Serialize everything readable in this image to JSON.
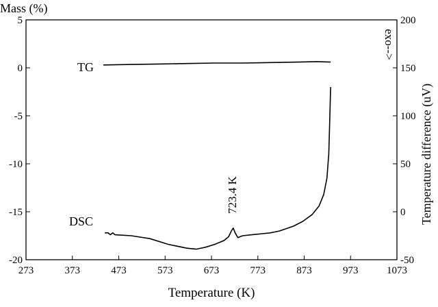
{
  "chart_data": {
    "type": "line",
    "title": "",
    "xlabel": "Temperature (K)",
    "ylabel_left": "Mass (%)",
    "ylabel_right": "Temperature difference (uV)",
    "exo_label": "exo-->",
    "xlim": [
      273,
      1073
    ],
    "ylim_left": [
      -20,
      5
    ],
    "ylim_right": [
      -50,
      200
    ],
    "xticks": [
      273,
      373,
      473,
      573,
      673,
      773,
      873,
      973,
      1073
    ],
    "yticks_left": [
      5,
      0,
      -5,
      -10,
      -15,
      -20
    ],
    "yticks_right": [
      200,
      150,
      100,
      50,
      0,
      -50
    ],
    "grid": false,
    "series": [
      {
        "name": "TG",
        "axis": "left",
        "x": [
          440,
          500,
          560,
          620,
          680,
          740,
          800,
          860,
          900,
          930
        ],
        "y": [
          0.3,
          0.35,
          0.4,
          0.45,
          0.5,
          0.5,
          0.55,
          0.6,
          0.65,
          0.6
        ]
      },
      {
        "name": "DSC",
        "axis": "right",
        "x": [
          443,
          450,
          455,
          460,
          465,
          500,
          540,
          580,
          620,
          640,
          660,
          680,
          700,
          710,
          716,
          720,
          724,
          730,
          740,
          760,
          800,
          820,
          850,
          870,
          890,
          905,
          915,
          922,
          926,
          928,
          930
        ],
        "y": [
          -22,
          -22,
          -24,
          -22,
          -24,
          -25,
          -28,
          -34,
          -38,
          -39,
          -37,
          -34,
          -30,
          -26,
          -20,
          -17,
          -22,
          -27,
          -25,
          -24,
          -22,
          -20,
          -15,
          -10,
          -3,
          6,
          18,
          35,
          60,
          95,
          130
        ]
      }
    ],
    "annotations": [
      {
        "text": "723.4 K",
        "x": 723.4,
        "y_right": -17
      }
    ]
  }
}
